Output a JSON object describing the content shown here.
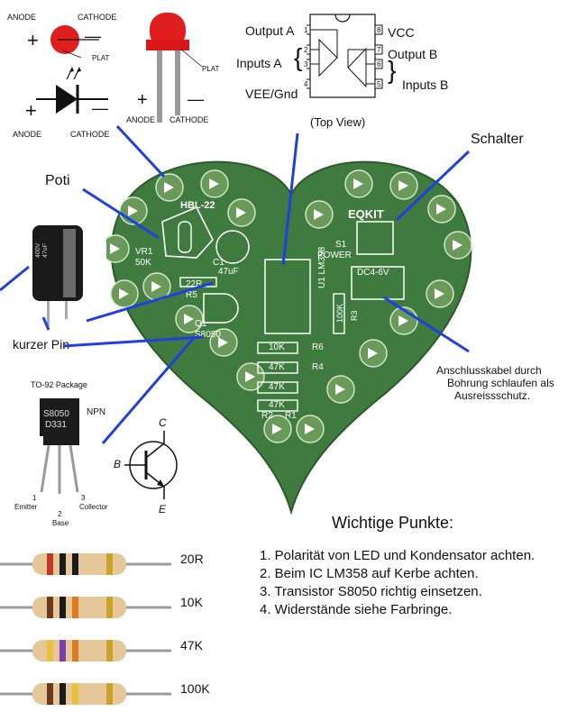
{
  "led_symbols": {
    "anode": "ANODE",
    "cathode": "CATHODE",
    "plat": "PLAT",
    "plus": "+",
    "minus": "—"
  },
  "opamp": {
    "output_a": "Output A",
    "inputs_a": "Inputs A",
    "vee_gnd": "VEE/Gnd",
    "vcc": "VCC",
    "output_b": "Output B",
    "inputs_b": "Inputs B",
    "top_view": "(Top View)",
    "pins_left": [
      "1",
      "2",
      "3",
      "4"
    ],
    "pins_right": [
      "8",
      "7",
      "6",
      "5"
    ]
  },
  "labels": {
    "poti": "Poti",
    "schalter": "Schalter",
    "kurzer_pin": "kurzer Pin -",
    "anschluss_line1": "Anschlusskabel durch",
    "anschluss_line2": "Bohrung schlaufen als",
    "anschluss_line3": "Ausreissschutz."
  },
  "pcb": {
    "hbl": "HBL-22",
    "vr1": "VR1",
    "val_50k": "50K",
    "c1": "C1",
    "cap_val": "47uF",
    "r5_val": "22R",
    "r5": "R5",
    "q1": "Q1",
    "q1_part": "S8050",
    "s1": "S1",
    "power": "POWER",
    "brand": "EQKIT",
    "u1": "U1 LM358",
    "dc": "DC4-6V",
    "r3_val": "100K",
    "r3": "R3",
    "r6_val": "10K",
    "r6": "R6",
    "r4_val": "47K",
    "r4": "R4",
    "r1_val": "47K",
    "r2_val": "47K",
    "r2": "R2",
    "r1": "R1"
  },
  "capacitor": {
    "text1": "400V",
    "text2": "47uF"
  },
  "transistor": {
    "package": "TO-92 Package",
    "npn": "NPN",
    "marking1": "S8050",
    "marking2": "D331",
    "pin1": "1",
    "pin1_name": "Emitter",
    "pin2": "2",
    "pin2_name": "Base",
    "pin3": "3",
    "pin3_name": "Collector",
    "sym_c": "C",
    "sym_b": "B",
    "sym_e": "E"
  },
  "notes": {
    "title": "Wichtige Punkte:",
    "items": [
      "1. Polarität von LED und Kondensator achten.",
      "2. Beim IC LM358 auf Kerbe achten.",
      "3. Transistor S8050 richtig einsetzen.",
      "4. Widerstände siehe Farbringe."
    ]
  },
  "resistors": [
    {
      "label": "20R",
      "bands": [
        "#c0392b",
        "#1a1a1a",
        "#1a1a1a",
        "#c9a227"
      ]
    },
    {
      "label": "10K",
      "bands": [
        "#6b3a1f",
        "#1a1a1a",
        "#e07a1f",
        "#c9a227"
      ]
    },
    {
      "label": "47K",
      "bands": [
        "#e8c23a",
        "#7b3fb0",
        "#e07a1f",
        "#c9a227"
      ]
    },
    {
      "label": "100K",
      "bands": [
        "#6b3a1f",
        "#1a1a1a",
        "#e8c23a",
        "#c9a227"
      ]
    }
  ],
  "colors": {
    "pcb_green": "#3f7a3f",
    "led_red": "#e01e1e",
    "pointer_blue": "#1f3fe0"
  }
}
